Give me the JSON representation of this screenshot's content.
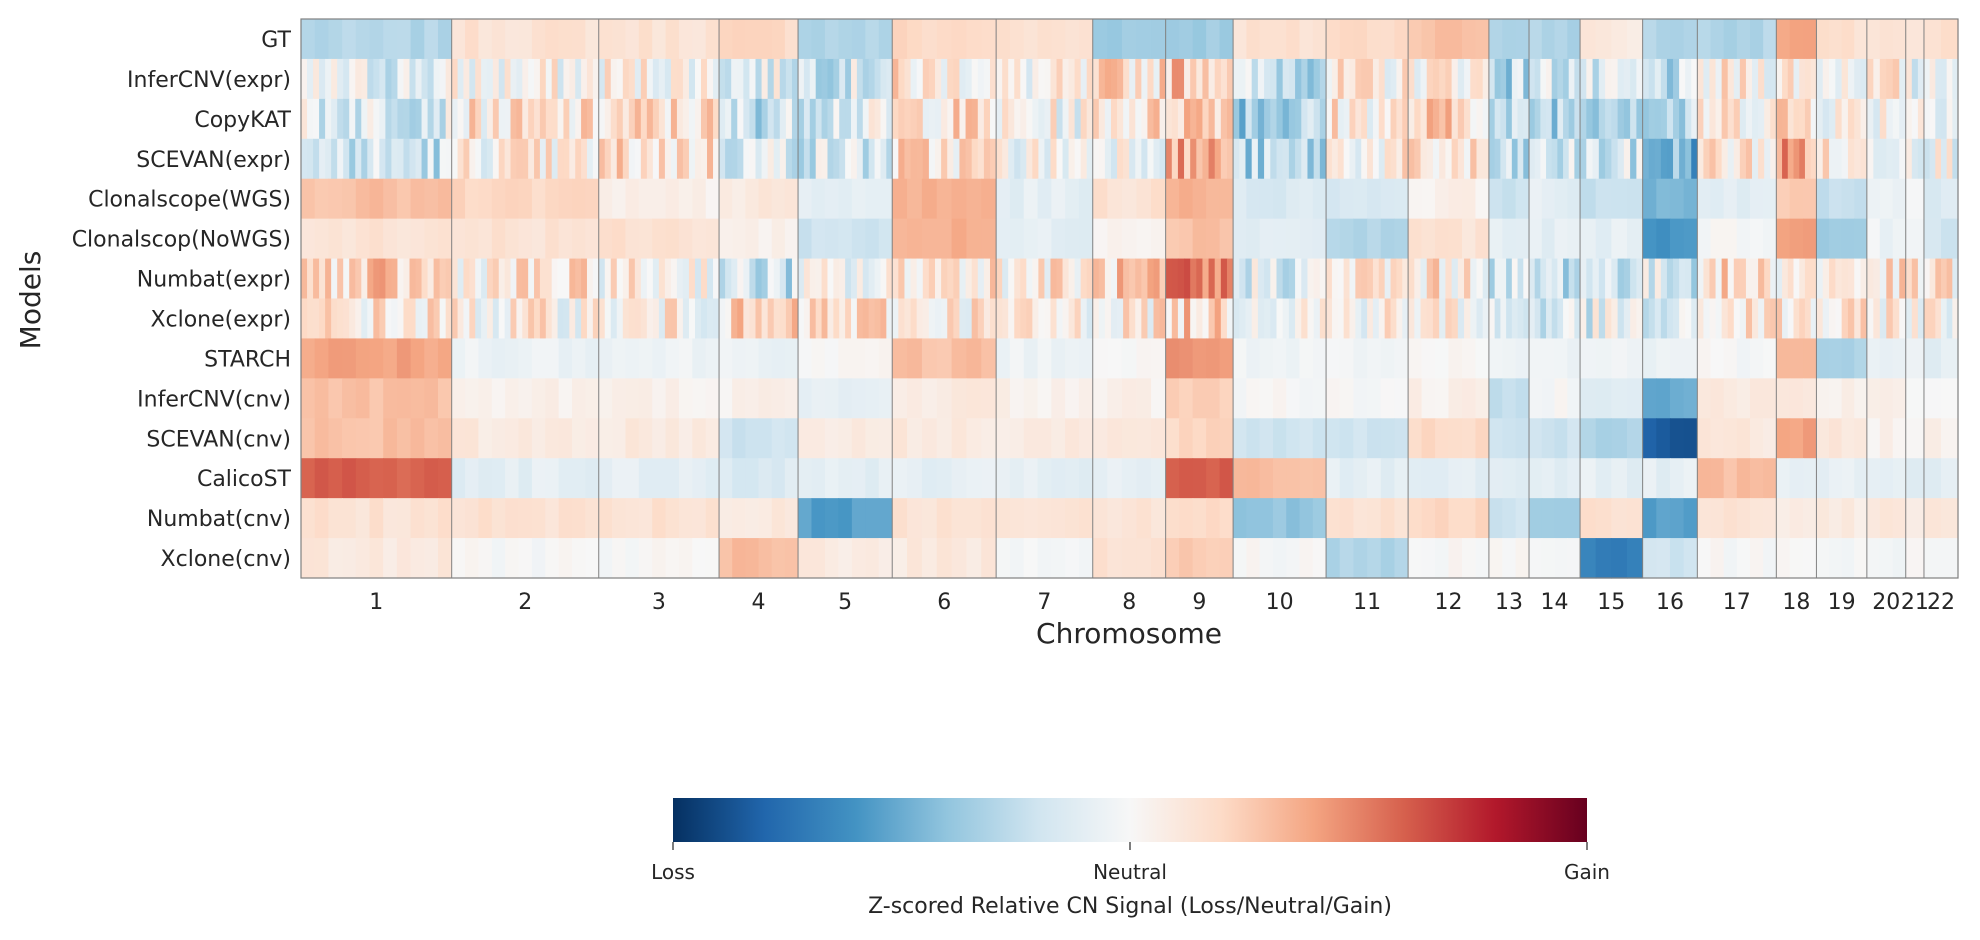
{
  "chart_data": {
    "type": "heatmap",
    "xlabel": "Chromosome",
    "ylabel": "Models",
    "colormap": "RdBu_r",
    "value_range": [
      -1,
      1
    ],
    "rows": [
      "GT",
      "InferCNV(expr)",
      "CopyKAT",
      "SCEVAN(expr)",
      "Clonalscope(WGS)",
      "Clonalscop(NoWGS)",
      "Numbat(expr)",
      "Xclone(expr)",
      "STARCH",
      "InferCNV(cnv)",
      "SCEVAN(cnv)",
      "CalicoST",
      "Numbat(cnv)",
      "Xclone(cnv)"
    ],
    "chromosomes": [
      {
        "label": "1",
        "length": 248
      },
      {
        "label": "2",
        "length": 242
      },
      {
        "label": "3",
        "length": 198
      },
      {
        "label": "4",
        "length": 130
      },
      {
        "label": "5",
        "length": 155
      },
      {
        "label": "6",
        "length": 171
      },
      {
        "label": "7",
        "length": 159
      },
      {
        "label": "8",
        "length": 120
      },
      {
        "label": "9",
        "length": 111
      },
      {
        "label": "10",
        "length": 153
      },
      {
        "label": "11",
        "length": 135
      },
      {
        "label": "12",
        "length": 133
      },
      {
        "label": "13",
        "length": 66
      },
      {
        "label": "14",
        "length": 84
      },
      {
        "label": "15",
        "length": 103
      },
      {
        "label": "16",
        "length": 90
      },
      {
        "label": "17",
        "length": 130
      },
      {
        "label": "18",
        "length": 66
      },
      {
        "label": "19",
        "length": 83
      },
      {
        "label": "20",
        "length": 64
      },
      {
        "label": "21",
        "length": 30
      },
      {
        "label": "22",
        "length": 56
      }
    ],
    "segment_values": [
      [
        -0.3,
        0.15,
        0.15,
        0.2,
        -0.3,
        0.2,
        0.15,
        -0.35,
        -0.35,
        0.15,
        0.2,
        0.3,
        -0.3,
        -0.3,
        0.1,
        -0.3,
        -0.3,
        0.4,
        0.15,
        0.15,
        0.1,
        0.15
      ],
      [
        -0.1,
        0.0,
        0.05,
        -0.1,
        -0.15,
        0.1,
        0.0,
        0.15,
        0.3,
        -0.2,
        0.05,
        0.1,
        -0.25,
        -0.15,
        -0.2,
        -0.25,
        0.05,
        0.1,
        0.05,
        0.05,
        -0.1,
        0.05
      ],
      [
        -0.1,
        0.1,
        0.15,
        -0.2,
        -0.1,
        0.15,
        0.0,
        0.15,
        0.3,
        -0.3,
        0.1,
        0.2,
        -0.3,
        -0.25,
        -0.2,
        -0.3,
        0.1,
        0.2,
        0.05,
        0.05,
        0.05,
        0.05
      ],
      [
        -0.2,
        0.05,
        0.15,
        -0.1,
        -0.15,
        0.15,
        0.0,
        0.05,
        0.35,
        -0.3,
        0.05,
        0.1,
        -0.3,
        -0.2,
        -0.2,
        -0.45,
        0.1,
        0.4,
        0.05,
        0.05,
        0.05,
        0.0
      ],
      [
        0.3,
        0.2,
        0.05,
        0.1,
        -0.1,
        0.35,
        -0.1,
        0.15,
        0.35,
        -0.15,
        -0.15,
        0.05,
        -0.2,
        -0.1,
        -0.25,
        -0.45,
        -0.1,
        0.25,
        -0.25,
        -0.05,
        -0.05,
        -0.15
      ],
      [
        0.15,
        0.15,
        0.15,
        0.05,
        -0.2,
        0.35,
        -0.1,
        0.05,
        0.3,
        -0.1,
        -0.3,
        0.15,
        -0.1,
        -0.1,
        -0.1,
        -0.6,
        0.0,
        0.4,
        -0.35,
        -0.05,
        -0.05,
        -0.2
      ],
      [
        0.2,
        0.1,
        0.05,
        -0.2,
        -0.05,
        0.15,
        0.1,
        0.2,
        0.45,
        -0.1,
        0.1,
        0.1,
        -0.2,
        -0.2,
        -0.15,
        -0.15,
        0.15,
        0.1,
        0.1,
        0.1,
        0.1,
        0.1
      ],
      [
        0.1,
        0.05,
        0.05,
        0.15,
        0.15,
        0.1,
        0.05,
        0.1,
        0.2,
        0.05,
        0.05,
        0.05,
        -0.15,
        -0.15,
        -0.1,
        -0.2,
        0.1,
        0.1,
        0.05,
        0.1,
        0.05,
        0.05
      ],
      [
        0.4,
        -0.05,
        -0.05,
        -0.05,
        0.0,
        0.3,
        -0.05,
        0.0,
        0.45,
        -0.05,
        -0.05,
        0.0,
        -0.05,
        -0.05,
        -0.05,
        -0.05,
        0.0,
        0.3,
        -0.3,
        -0.05,
        -0.05,
        -0.1
      ],
      [
        0.3,
        0.05,
        0.05,
        0.05,
        -0.1,
        0.1,
        0.05,
        0.05,
        0.25,
        0.0,
        0.0,
        0.05,
        -0.25,
        0.0,
        -0.1,
        -0.5,
        0.1,
        0.1,
        0.05,
        0.05,
        0.0,
        0.0
      ],
      [
        0.3,
        0.1,
        0.1,
        -0.2,
        0.1,
        0.1,
        0.1,
        0.1,
        0.2,
        -0.2,
        -0.2,
        0.2,
        -0.2,
        -0.2,
        -0.3,
        -0.85,
        0.1,
        0.4,
        0.1,
        0.05,
        0.05,
        0.05
      ],
      [
        0.6,
        -0.1,
        -0.1,
        -0.15,
        -0.1,
        -0.1,
        -0.1,
        -0.1,
        0.6,
        0.3,
        -0.1,
        -0.1,
        -0.1,
        -0.1,
        -0.1,
        -0.1,
        0.3,
        -0.1,
        -0.1,
        -0.1,
        -0.1,
        -0.1
      ],
      [
        0.15,
        0.15,
        0.15,
        0.1,
        -0.55,
        0.15,
        0.15,
        0.15,
        0.2,
        -0.4,
        0.15,
        0.2,
        -0.2,
        -0.35,
        0.15,
        -0.55,
        0.15,
        0.1,
        0.1,
        0.1,
        0.1,
        0.15
      ],
      [
        0.1,
        0.0,
        0.0,
        0.3,
        0.1,
        0.1,
        0.0,
        0.15,
        0.25,
        0.0,
        -0.3,
        0.0,
        0.0,
        0.0,
        -0.7,
        -0.2,
        0.0,
        0.0,
        0.0,
        -0.05,
        0.0,
        0.0
      ]
    ],
    "colorbar": {
      "tick_labels": [
        "Loss",
        "Neutral",
        "Gain"
      ],
      "label": "Z-scored Relative CN Signal (Loss/Neutral/Gain)"
    }
  }
}
